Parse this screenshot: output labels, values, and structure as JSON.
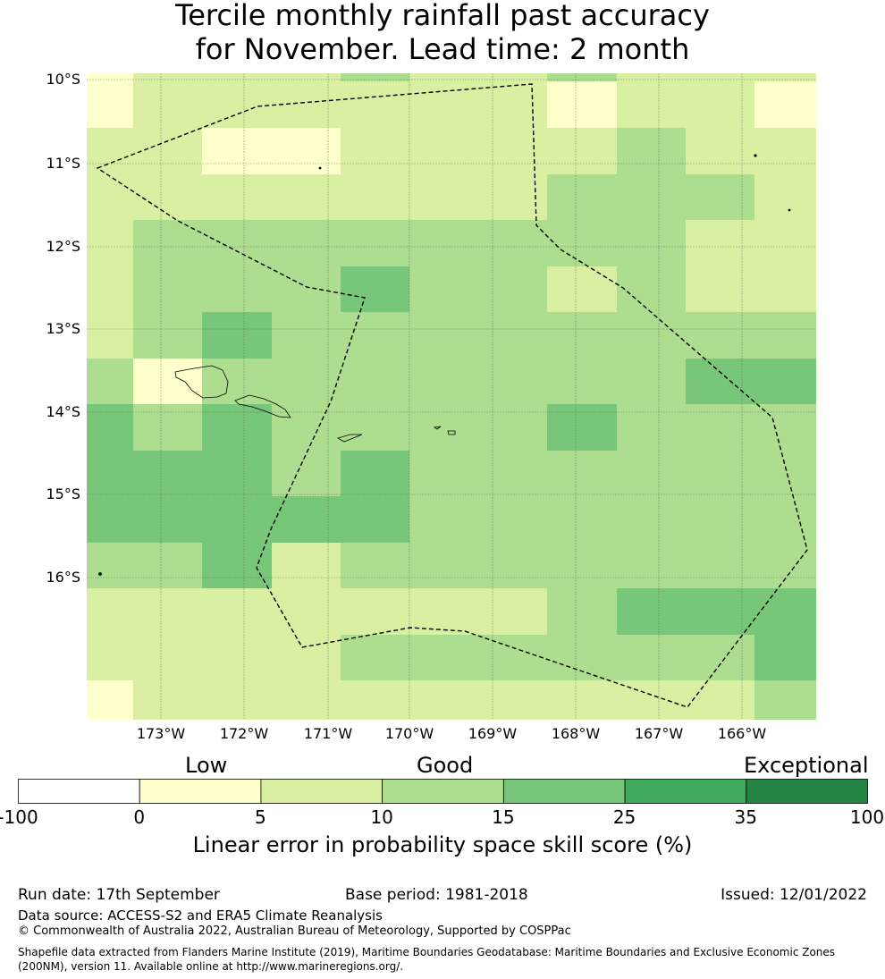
{
  "title": {
    "line1": "Tercile monthly rainfall past accuracy",
    "line2": "for November. Lead time: 2 month"
  },
  "map": {
    "lat_labels": [
      "10°S",
      "11°S",
      "12°S",
      "13°S",
      "14°S",
      "15°S",
      "16°S"
    ],
    "lon_labels": [
      "173°W",
      "172°W",
      "171°W",
      "170°W",
      "169°W",
      "168°W",
      "167°W",
      "166°W"
    ],
    "grid_levels": [
      [
        1,
        2,
        2,
        2,
        3,
        2,
        2,
        3,
        2,
        2,
        2
      ],
      [
        1,
        2,
        2,
        2,
        2,
        2,
        2,
        1,
        2,
        2,
        1
      ],
      [
        2,
        2,
        1,
        1,
        2,
        2,
        2,
        2,
        3,
        2,
        2
      ],
      [
        2,
        2,
        2,
        2,
        2,
        2,
        2,
        3,
        3,
        3,
        2
      ],
      [
        2,
        3,
        3,
        3,
        3,
        3,
        3,
        3,
        3,
        2,
        2
      ],
      [
        2,
        3,
        3,
        3,
        4,
        3,
        3,
        2,
        3,
        2,
        2
      ],
      [
        2,
        3,
        4,
        3,
        3,
        3,
        3,
        3,
        3,
        3,
        3
      ],
      [
        3,
        1,
        3,
        3,
        3,
        3,
        3,
        3,
        3,
        4,
        4
      ],
      [
        4,
        3,
        4,
        3,
        3,
        3,
        3,
        4,
        3,
        3,
        3
      ],
      [
        4,
        4,
        4,
        3,
        4,
        3,
        3,
        3,
        3,
        3,
        3
      ],
      [
        4,
        4,
        4,
        4,
        4,
        3,
        3,
        3,
        3,
        3,
        3
      ],
      [
        3,
        3,
        4,
        2,
        3,
        3,
        3,
        3,
        3,
        3,
        3
      ],
      [
        2,
        2,
        2,
        2,
        2,
        2,
        2,
        3,
        4,
        4,
        4
      ],
      [
        2,
        2,
        2,
        2,
        3,
        3,
        3,
        3,
        3,
        3,
        4
      ],
      [
        1,
        2,
        2,
        2,
        2,
        2,
        2,
        2,
        2,
        2,
        3
      ]
    ]
  },
  "colorbar": {
    "category_labels": [
      "Low",
      "Good",
      "Exceptional"
    ],
    "colors": [
      "#ffffff",
      "#ffffcc",
      "#d9f0a3",
      "#addd8e",
      "#78c679",
      "#41ab5d",
      "#238443"
    ],
    "ticks": [
      "-100",
      "0",
      "5",
      "10",
      "15",
      "25",
      "35",
      "100"
    ],
    "label": "Linear error in probability space skill score (%)"
  },
  "footer": {
    "run_date": "Run date: 17th September",
    "base_period": "Base period: 1981-2018",
    "issued": "Issued: 12/01/2022",
    "data_source": "Data source: ACCESS-S2 and ERA5 Climate Reanalysis",
    "copyright": "© Commonwealth of Australia 2022, Australian Bureau of Meteorology, Supported by COSPPac",
    "shapefile_line1": "Shapefile data extracted from Flanders Marine Institute (2019), Maritime Boundaries Geodatabase: Maritime Boundaries and Exclusive Economic Zones",
    "shapefile_line2": "(200NM), version 11. Available online at http://www.marineregions.org/."
  }
}
